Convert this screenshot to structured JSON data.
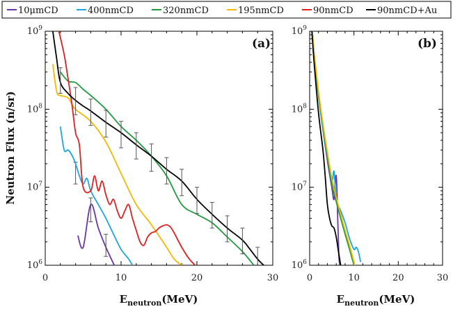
{
  "chart_data": [
    {
      "type": "line",
      "panel_label": "(a)",
      "xlabel_main": "E",
      "xlabel_sub": "neutron",
      "xlabel_unit": "(MeV)",
      "ylabel": "Neutron Flux (n/sr)",
      "xlim": [
        0,
        30
      ],
      "ylim": [
        1000000,
        1000000000
      ],
      "yscale": "log",
      "legend_position": "top",
      "x_ticks": [
        "0",
        "10",
        "20",
        "30"
      ],
      "x_tick_values": [
        0,
        10,
        20,
        30
      ],
      "y_ticks": [
        {
          "base": "10",
          "exp": "6",
          "value": 1000000
        },
        {
          "base": "10",
          "exp": "7",
          "value": 10000000
        },
        {
          "base": "10",
          "exp": "8",
          "value": 100000000
        },
        {
          "base": "10",
          "exp": "9",
          "value": 1000000000
        }
      ],
      "series": [
        {
          "name": "10μmCD",
          "color": "#6a35a8",
          "x": [
            4.3,
            5,
            6,
            7,
            8,
            9.1
          ],
          "y": [
            2400000,
            1700000,
            6000000,
            3000000,
            1700000,
            1000000
          ],
          "errors_x": [
            4,
            6,
            8
          ],
          "errors_y": [
            16000000,
            5200000,
            1800000
          ],
          "errors_lo": [
            11000000,
            3600000,
            1300000
          ],
          "errors_hi": [
            21000000,
            7300000,
            2500000
          ]
        },
        {
          "name": "400nmCD",
          "color": "#1aa7e0",
          "x": [
            2,
            2.5,
            3,
            3.5,
            4,
            4.5,
            5,
            5.5,
            6,
            7,
            8,
            9,
            10,
            11,
            11.5
          ],
          "y": [
            60000000,
            30000000,
            30000000,
            26000000,
            20000000,
            14000000,
            11000000,
            13000000,
            9000000,
            6000000,
            4000000,
            2500000,
            1600000,
            1200000,
            1000000
          ]
        },
        {
          "name": "320nmCD",
          "color": "#1f9a3c",
          "x": [
            2,
            3,
            4,
            5,
            6,
            8,
            10,
            12,
            14,
            16,
            18,
            20,
            22,
            24,
            26,
            27.5
          ],
          "y": [
            300000000,
            230000000,
            220000000,
            180000000,
            150000000,
            100000000,
            60000000,
            40000000,
            25000000,
            14000000,
            6000000,
            4500000,
            3500000,
            2300000,
            1500000,
            1000000
          ]
        },
        {
          "name": "195nmCD",
          "color": "#f5b800",
          "x": [
            1,
            1.5,
            2,
            3,
            4,
            6,
            8,
            10,
            12,
            14,
            16,
            17,
            18
          ],
          "y": [
            380000000,
            170000000,
            150000000,
            140000000,
            100000000,
            70000000,
            38000000,
            15000000,
            6000000,
            3300000,
            1700000,
            1200000,
            1000000
          ]
        },
        {
          "name": "90nmCD",
          "color": "#e01f1f",
          "x": [
            1.8,
            2.5,
            3,
            3.5,
            4,
            4.5,
            5,
            6,
            6.5,
            7,
            7.5,
            8,
            8.5,
            9,
            9.5,
            10,
            10.5,
            11,
            11.5,
            12,
            12.5,
            13,
            13.5,
            14,
            14.5,
            15,
            15.5,
            16,
            16.5,
            17,
            18,
            19,
            20
          ],
          "y": [
            1000000000,
            500000000,
            250000000,
            120000000,
            50000000,
            35000000,
            10000000,
            9000000,
            14000000,
            9000000,
            12000000,
            8000000,
            6000000,
            7000000,
            5000000,
            4000000,
            5000000,
            6000000,
            4000000,
            2800000,
            2000000,
            1800000,
            2300000,
            2600000,
            2700000,
            3000000,
            3200000,
            3300000,
            3100000,
            2600000,
            1700000,
            1200000,
            950000
          ]
        },
        {
          "name": "90nmCD+Au",
          "color": "#000000",
          "x": [
            1,
            1.5,
            2,
            3,
            4,
            5,
            6,
            8,
            10,
            12,
            14,
            16,
            18,
            20,
            22,
            24,
            26,
            27,
            28,
            28.8
          ],
          "y": [
            1000000000,
            450000000,
            220000000,
            160000000,
            130000000,
            110000000,
            95000000,
            68000000,
            50000000,
            35000000,
            25000000,
            17000000,
            12000000,
            7000000,
            4500000,
            3000000,
            2100000,
            1600000,
            1200000,
            1000000
          ],
          "errors_x": [
            2,
            4,
            6,
            8,
            10,
            12,
            14,
            16,
            18,
            20,
            22,
            24,
            26,
            28
          ],
          "errors_y": [
            240000000,
            130000000,
            95000000,
            68000000,
            50000000,
            35000000,
            25000000,
            17000000,
            12000000,
            7000000,
            4500000,
            3000000,
            2100000,
            1200000
          ],
          "errors_lo": [
            160000000,
            85000000,
            62000000,
            44000000,
            32000000,
            23000000,
            16000000,
            11000000,
            7800000,
            4600000,
            3000000,
            2000000,
            1400000,
            800000
          ],
          "errors_hi": [
            340000000,
            190000000,
            135000000,
            97000000,
            70000000,
            50000000,
            36000000,
            24000000,
            17000000,
            10000000,
            6400000,
            4300000,
            3000000,
            1700000
          ]
        }
      ]
    },
    {
      "type": "line",
      "panel_label": "(b)",
      "xlabel_main": "E",
      "xlabel_sub": "neutron",
      "xlabel_unit": "(MeV)",
      "xlim": [
        0,
        30
      ],
      "ylim": [
        1000000,
        1000000000
      ],
      "yscale": "log",
      "x_ticks": [
        "0",
        "10",
        "20",
        "30"
      ],
      "x_tick_values": [
        0,
        10,
        20,
        30
      ],
      "y_ticks": [
        {
          "base": "10",
          "exp": "6",
          "value": 1000000
        },
        {
          "base": "10",
          "exp": "7",
          "value": 10000000
        },
        {
          "base": "10",
          "exp": "8",
          "value": 100000000
        },
        {
          "base": "10",
          "exp": "9",
          "value": 1000000000
        }
      ],
      "series": [
        {
          "name": "10μmCD",
          "color": "#6a35a8",
          "x": [
            0.6,
            1,
            2,
            3,
            4,
            5,
            5.5,
            6,
            6.4,
            6.6,
            6.8
          ],
          "y": [
            1000000000,
            520000000,
            150000000,
            55000000,
            22000000,
            10000000,
            7000000,
            14000000,
            3000000,
            1300000,
            1000000
          ]
        },
        {
          "name": "400nmCD",
          "color": "#1aa7e0",
          "x": [
            0.6,
            1,
            2,
            3,
            4,
            5,
            5.5,
            6,
            7,
            8,
            9,
            10,
            10.5,
            11,
            11.5
          ],
          "y": [
            1000000000,
            520000000,
            150000000,
            55000000,
            24000000,
            12000000,
            16000000,
            7000000,
            5000000,
            3500000,
            2200000,
            1600000,
            1700000,
            1500000,
            1100000
          ]
        },
        {
          "name": "320nmCD",
          "color": "#1f9a3c",
          "x": [
            0.6,
            1,
            2,
            3,
            4,
            5,
            6,
            7,
            8,
            9,
            10
          ],
          "y": [
            1000000000,
            520000000,
            160000000,
            60000000,
            25000000,
            11000000,
            6500000,
            4000000,
            2500000,
            1600000,
            1000000
          ]
        },
        {
          "name": "195nmCD",
          "color": "#f5b800",
          "x": [
            0.6,
            1,
            2,
            3,
            4,
            5,
            6,
            7,
            8,
            9,
            10.2
          ],
          "y": [
            1000000000,
            530000000,
            170000000,
            65000000,
            28000000,
            13000000,
            7500000,
            4500000,
            2800000,
            1800000,
            1000000
          ]
        },
        {
          "name": "90nmCD+Au",
          "color": "#000000",
          "x": [
            0.5,
            1,
            2,
            3,
            3.5,
            4,
            4.5,
            5,
            5.5,
            6,
            6.5,
            7
          ],
          "y": [
            1000000000,
            400000000,
            90000000,
            30000000,
            14000000,
            6000000,
            4000000,
            3200000,
            3000000,
            2300000,
            1500000,
            1000000
          ]
        }
      ]
    }
  ]
}
